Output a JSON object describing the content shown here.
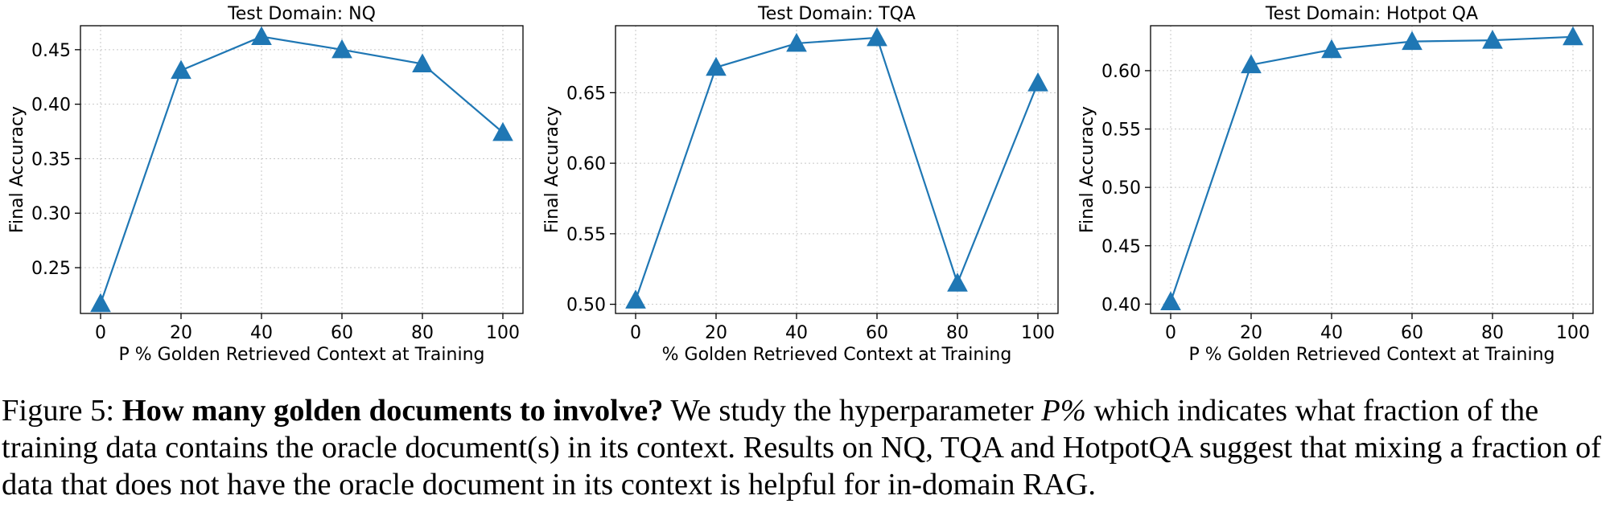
{
  "chart_data": [
    {
      "type": "line",
      "title": "Test Domain: NQ",
      "xlabel": "P % Golden Retrieved Context at Training",
      "ylabel": "Final Accuracy",
      "x": [
        0,
        20,
        40,
        60,
        80,
        100
      ],
      "xticks": [
        "0",
        "20",
        "40",
        "60",
        "80",
        "100"
      ],
      "yticks": [
        "0.25",
        "0.30",
        "0.35",
        "0.40",
        "0.45"
      ],
      "ylim": [
        0.208,
        0.472
      ],
      "xlim": [
        -5,
        105
      ],
      "grid": true,
      "marker": "triangle-up",
      "color": "#1f77b4",
      "series": [
        {
          "values": [
            0.217,
            0.431,
            0.462,
            0.45,
            0.437,
            0.374
          ]
        }
      ]
    },
    {
      "type": "line",
      "title": "Test Domain: TQA",
      "xlabel": "% Golden Retrieved Context at Training",
      "ylabel": "Final Accuracy",
      "x": [
        0,
        20,
        40,
        60,
        80,
        100
      ],
      "xticks": [
        "0",
        "20",
        "40",
        "60",
        "80",
        "100"
      ],
      "yticks": [
        "0.50",
        "0.55",
        "0.60",
        "0.65"
      ],
      "ylim": [
        0.4935,
        0.6975
      ],
      "xlim": [
        -5,
        105
      ],
      "grid": true,
      "marker": "triangle-up",
      "color": "#1f77b4",
      "series": [
        {
          "values": [
            0.503,
            0.668,
            0.685,
            0.689,
            0.515,
            0.657
          ]
        }
      ]
    },
    {
      "type": "line",
      "title": "Test Domain: Hotpot QA",
      "xlabel": "P % Golden Retrieved Context at Training",
      "ylabel": "Final Accuracy",
      "x": [
        0,
        20,
        40,
        60,
        80,
        100
      ],
      "xticks": [
        "0",
        "20",
        "40",
        "60",
        "80",
        "100"
      ],
      "yticks": [
        "0.40",
        "0.45",
        "0.50",
        "0.55",
        "0.60"
      ],
      "ylim": [
        0.392,
        0.6385
      ],
      "xlim": [
        -5,
        105
      ],
      "grid": true,
      "marker": "triangle-up",
      "color": "#1f77b4",
      "series": [
        {
          "values": [
            0.402,
            0.605,
            0.618,
            0.625,
            0.626,
            0.629
          ]
        }
      ]
    }
  ],
  "caption": {
    "prefix": "Figure 5: ",
    "lead": "How many golden documents to involve?",
    "text_before_math": " We study the hyperparameter ",
    "math": "P%",
    "text_after_math": " which indicates what fraction of the training data contains the oracle document(s) in its context. Results on NQ, TQA and HotpotQA suggest that mixing a fraction of data that does not have the oracle document in its context is helpful for in-domain RAG."
  }
}
